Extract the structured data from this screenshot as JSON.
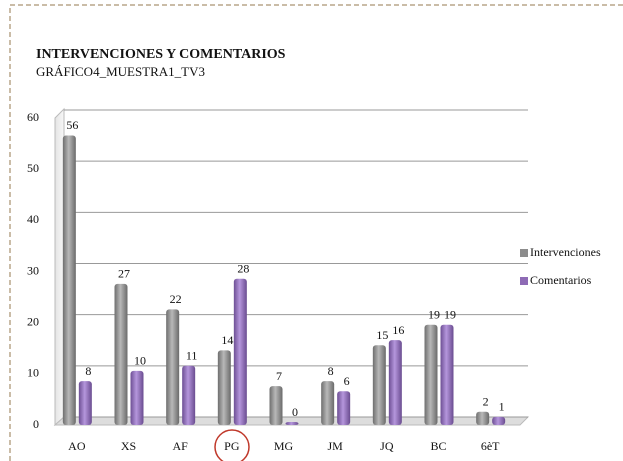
{
  "chart_data": {
    "type": "bar",
    "title": "INTERVENCIONES Y COMENTARIOS",
    "subtitle": "GRÁFICO4_MUESTRA1_TV3",
    "categories": [
      "AO",
      "XS",
      "AF",
      "PG",
      "MG",
      "JM",
      "JQ",
      "BC",
      "6èT"
    ],
    "series": [
      {
        "name": "Intervenciones",
        "color": "#8c8c8c",
        "values": [
          56,
          27,
          22,
          14,
          7,
          8,
          15,
          19,
          2
        ]
      },
      {
        "name": "Comentarios",
        "color": "#8e6bb5",
        "values": [
          8,
          10,
          11,
          28,
          0,
          6,
          16,
          19,
          1
        ]
      }
    ],
    "ylim": [
      0,
      60
    ],
    "yticks": [
      0,
      10,
      20,
      30,
      40,
      50,
      60
    ],
    "grid": true,
    "legend": "right"
  }
}
